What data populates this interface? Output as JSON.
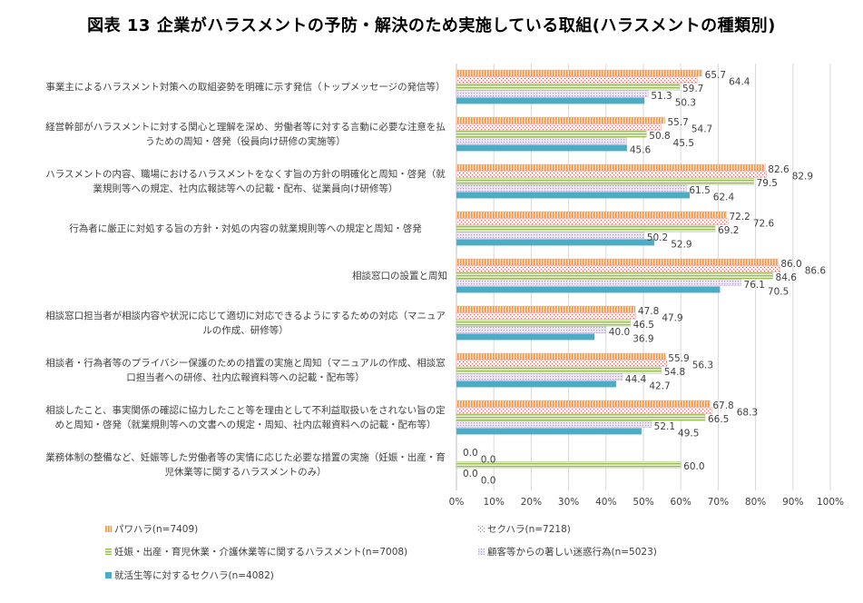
{
  "title": "図表 13  企業がハラスメントの予防・解決のため実施している取組(ハラスメントの種類別)",
  "chart_data": {
    "type": "bar",
    "orientation": "horizontal",
    "title": "図表 13  企業がハラスメントの予防・解決のため実施している取組(ハラスメントの種類別)",
    "categories": [
      "事業主によるハラスメント対策への取組姿勢を明確に示す発信（トップメッセージの発信等）",
      "経営幹部がハラスメントに対する関心と理解を深め、労働者等に対する言動に必要な注意を払うための周知・啓発（役員向け研修の実施等）",
      "ハラスメントの内容、職場におけるハラスメントをなくす旨の方針の明確化と周知・啓発（就業規則等への規定、社内広報誌等への記載・配布、従業員向け研修等）",
      "行為者に厳正に対処する旨の方針・対処の内容の就業規則等への規定と周知・啓発",
      "相談窓口の設置と周知",
      "相談窓口担当者が相談内容や状況に応じて適切に対応できるようにするための対応（マニュアルの作成、研修等）",
      "相談者・行為者等のプライバシー保護のための措置の実施と周知（マニュアルの作成、相談窓口担当者への研修、社内広報資料等への記載・配布等）",
      "相談したこと、事実関係の確認に協力したこと等を理由として不利益取扱いをされない旨の定めと周知・啓発（就業規則等への文書への規定・周知、社内広報資料への記載・配布等）",
      "業務体制の整備など、妊娠等した労働者等の実情に応じた必要な措置の実施（妊娠・出産・育児休業等に関するハラスメントのみ）"
    ],
    "series": [
      {
        "name": "パワハラ(n=7409)",
        "color": "#F79646",
        "pattern": "vertical-stripes",
        "values": [
          65.7,
          55.7,
          82.6,
          72.2,
          86.0,
          47.8,
          55.9,
          67.8,
          0.0
        ]
      },
      {
        "name": "セクハラ(n=7218)",
        "color": "#E46C6C",
        "pattern": "dots",
        "values": [
          64.4,
          54.7,
          82.9,
          72.6,
          86.6,
          47.9,
          56.3,
          68.3,
          0.0
        ]
      },
      {
        "name": "妊娠・出産・育児休業・介護休業等に関するハラスメント(n=7008)",
        "color": "#9BBB59",
        "pattern": "horizontal-stripes",
        "values": [
          59.7,
          50.8,
          79.5,
          69.2,
          84.6,
          46.5,
          54.8,
          66.5,
          60.0
        ]
      },
      {
        "name": "顧客等からの著しい迷惑行為(n=5023)",
        "color": "#B3A2C7",
        "pattern": "dense-dots",
        "values": [
          51.3,
          45.5,
          61.5,
          50.2,
          76.1,
          40.0,
          44.4,
          52.1,
          0.0
        ]
      },
      {
        "name": "就活生等に対するセクハラ(n=4082)",
        "color": "#4BACC6",
        "pattern": "solid",
        "values": [
          50.3,
          45.6,
          62.4,
          52.9,
          70.5,
          36.9,
          42.7,
          49.5,
          0.0
        ]
      }
    ],
    "xlim": [
      0,
      100
    ],
    "xticks": [
      "0%",
      "10%",
      "20%",
      "30%",
      "40%",
      "50%",
      "60%",
      "70%",
      "80%",
      "90%",
      "100%"
    ],
    "grid": true,
    "legend_position": "bottom"
  }
}
